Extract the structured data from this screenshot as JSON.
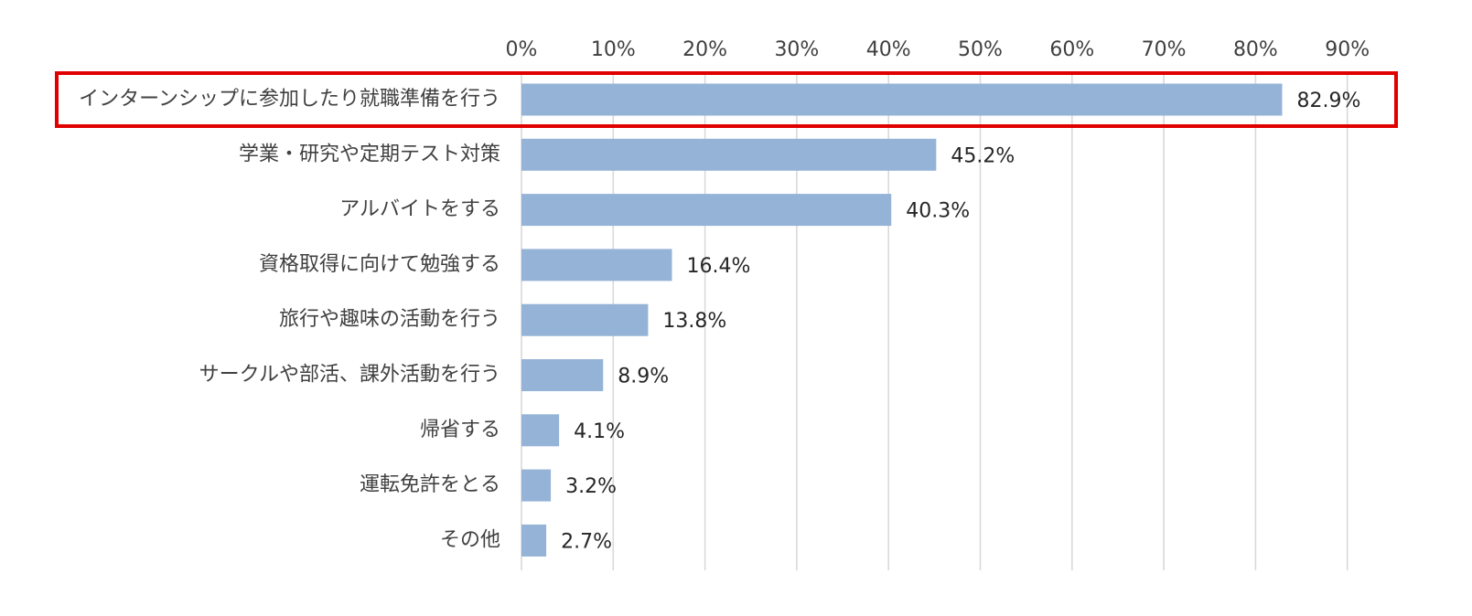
{
  "chart_data": {
    "type": "bar",
    "orientation": "horizontal",
    "title": "",
    "xlabel": "",
    "ylabel": "",
    "xlim": [
      0,
      90
    ],
    "x_ticks": [
      "0%",
      "10%",
      "20%",
      "30%",
      "40%",
      "50%",
      "60%",
      "70%",
      "80%",
      "90%"
    ],
    "x_tick_values": [
      0,
      10,
      20,
      30,
      40,
      50,
      60,
      70,
      80,
      90
    ],
    "x_axis_position": "top",
    "grid": "vertical",
    "legend": "none",
    "categories": [
      "インターンシップに参加したり就職準備を行う",
      "学業・研究や定期テスト対策",
      "アルバイトをする",
      "資格取得に向けて勉強する",
      "旅行や趣味の活動を行う",
      "サークルや部活、課外活動を行う",
      "帰省する",
      "運転免許をとる",
      "その他"
    ],
    "values": [
      82.9,
      45.2,
      40.3,
      16.4,
      13.8,
      8.9,
      4.1,
      3.2,
      2.7
    ],
    "data_labels": [
      "82.9%",
      "45.2%",
      "40.3%",
      "16.4%",
      "13.8%",
      "8.9%",
      "4.1%",
      "3.2%",
      "2.7%"
    ],
    "highlighted_category_index": 0,
    "colors": {
      "bar": "#95b3d7",
      "highlight_border": "#e00000",
      "gridline": "#d9d9d9",
      "text": "#404040"
    }
  }
}
